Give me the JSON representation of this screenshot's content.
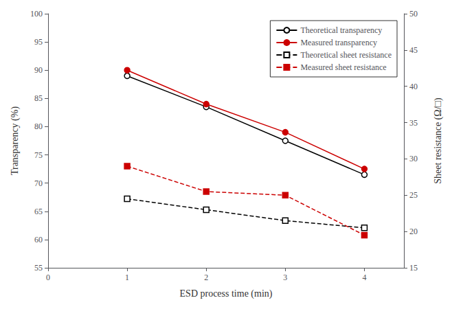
{
  "chart_data": {
    "type": "line",
    "xlabel": "ESD process time (min)",
    "ylabel": "Transparency (%)",
    "y2label": "Sheet resistance (Ω/□)",
    "x": [
      1,
      2,
      3,
      4
    ],
    "xlim": [
      0,
      4.5
    ],
    "xticks": [
      0,
      1,
      2,
      3,
      4
    ],
    "ylim": [
      55,
      100
    ],
    "yticks": [
      55,
      60,
      65,
      70,
      75,
      80,
      85,
      90,
      95,
      100
    ],
    "y2lim": [
      15,
      50
    ],
    "y2ticks": [
      15,
      20,
      25,
      30,
      35,
      40,
      45,
      50
    ],
    "grid": false,
    "legend": "upper right",
    "series": [
      {
        "name": "Theoretical transparency",
        "color": "#000000",
        "values": [
          89.0,
          83.5,
          77.5,
          71.5
        ],
        "marker": "open_circle",
        "line_style": "solid"
      },
      {
        "name": "Measured transparency",
        "color": "#cc0000",
        "values": [
          90.0,
          84.0,
          79.0,
          72.5
        ],
        "marker": "circle",
        "line_style": "solid"
      },
      {
        "name": "Theoretical sheet resistance",
        "color": "#000000",
        "values": [
          24.5,
          23.0,
          21.5,
          20.5
        ],
        "marker": "open_square",
        "line_style": "dashed",
        "axis": "y2"
      },
      {
        "name": "Measured sheet resistance",
        "color": "#cc0000",
        "values": [
          29.0,
          25.5,
          25.0,
          19.5
        ],
        "marker": "square",
        "line_style": "dashed",
        "axis": "y2"
      }
    ]
  }
}
